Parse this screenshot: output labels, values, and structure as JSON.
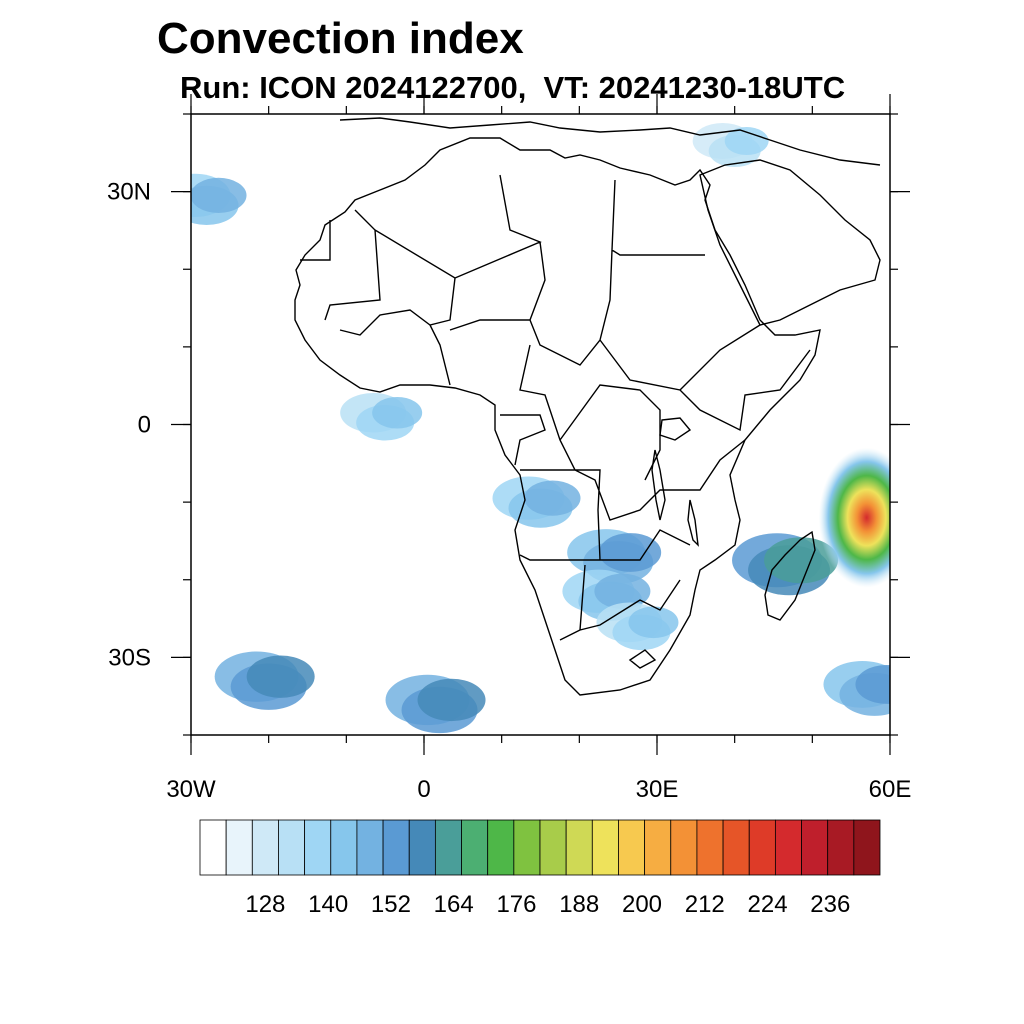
{
  "title": "Convection index",
  "subtitle": "Run: ICON 2024122700,  VT: 20241230-18UTC",
  "map": {
    "lon_range": [
      -30,
      60
    ],
    "lat_range": [
      -40,
      40
    ],
    "lon_ticks": [
      {
        "value": -30,
        "label": "30W"
      },
      {
        "value": 0,
        "label": "0"
      },
      {
        "value": 30,
        "label": "30E"
      },
      {
        "value": 60,
        "label": "60E"
      }
    ],
    "lat_ticks": [
      {
        "value": 30,
        "label": "30N"
      },
      {
        "value": 0,
        "label": "0"
      },
      {
        "value": -30,
        "label": "30S"
      }
    ],
    "minor_lon_step": 10,
    "minor_lat_step": 10,
    "field_regions": [
      {
        "lon": -28,
        "lat": 29,
        "level": 6
      },
      {
        "lon": -5,
        "lat": 1,
        "level": 5
      },
      {
        "lon": 15,
        "lat": -10,
        "level": 6
      },
      {
        "lon": 25,
        "lat": -17,
        "level": 7
      },
      {
        "lon": 24,
        "lat": -22,
        "level": 6
      },
      {
        "lon": 28,
        "lat": -26,
        "level": 5
      },
      {
        "lon": 47,
        "lat": -18,
        "level": 9
      },
      {
        "lon": 57,
        "lat": -12,
        "level": 17
      },
      {
        "lon": 40,
        "lat": 36,
        "level": 4
      },
      {
        "lon": 2,
        "lat": -36,
        "level": 8
      },
      {
        "lon": -20,
        "lat": -33,
        "level": 8
      },
      {
        "lon": 58,
        "lat": -34,
        "level": 7
      }
    ]
  },
  "colorbar": {
    "colors": [
      "#ffffff",
      "#e8f4fb",
      "#cfe9f7",
      "#b8e0f5",
      "#9fd6f4",
      "#86c6ec",
      "#73b2e1",
      "#5a9ad3",
      "#4589b8",
      "#4a9e99",
      "#4caf72",
      "#4eb748",
      "#7fc240",
      "#a8cc4a",
      "#cfd955",
      "#eee25b",
      "#f7c94f",
      "#f6ad42",
      "#f39136",
      "#ee722d",
      "#e65528",
      "#de3b28",
      "#d42a2d",
      "#bf1f2c",
      "#a81a24",
      "#8f151c"
    ],
    "tick_labels": [
      "128",
      "140",
      "152",
      "164",
      "176",
      "188",
      "200",
      "212",
      "224",
      "236"
    ]
  }
}
